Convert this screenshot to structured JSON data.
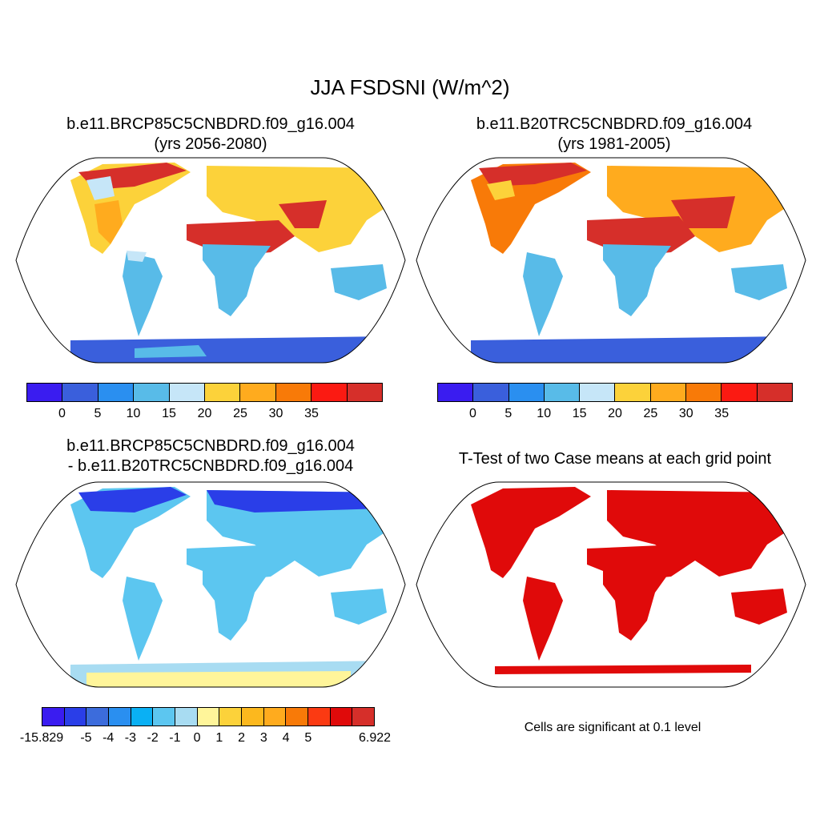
{
  "main_title": "JJA FSDSNI (W/m^2)",
  "panels": [
    {
      "title_line1": "b.e11.BRCP85C5CNBDRD.f09_g16.004",
      "title_line2": "(yrs 2056-2080)"
    },
    {
      "title_line1": "b.e11.B20TRC5CNBDRD.f09_g16.004",
      "title_line2": "(yrs 1981-2005)"
    },
    {
      "title_line1": "b.e11.BRCP85C5CNBDRD.f09_g16.004",
      "title_line2": "- b.e11.B20TRC5CNBDRD.f09_g16.004"
    },
    {
      "title_line1": "T-Test of two Case means at each grid point"
    }
  ],
  "colorbar_abs": {
    "colors": [
      "#3a1cf0",
      "#3a5fdc",
      "#2a8ff0",
      "#58bbe8",
      "#c6e6f8",
      "#fcd23a",
      "#ffab1e",
      "#f87a08",
      "#fb1a12",
      "#d62f2a"
    ],
    "labels": [
      "0",
      "5",
      "10",
      "15",
      "20",
      "25",
      "30",
      "35"
    ]
  },
  "colorbar_diff": {
    "colors": [
      "#3a1cf0",
      "#2a3ee8",
      "#3c6cdc",
      "#2a8ff0",
      "#0ab0f4",
      "#5cc6f0",
      "#a8dcf2",
      "#fff59a",
      "#fcd23a",
      "#fcb81e",
      "#ffab1e",
      "#f87a08",
      "#fb3a12",
      "#e00a0a",
      "#d62f2a"
    ],
    "labels": [
      "-15.829",
      "-5",
      "-4",
      "-3",
      "-2",
      "-1",
      "0",
      "1",
      "2",
      "3",
      "4",
      "5",
      "6.922"
    ]
  },
  "significance_note": "Cells are significant at 0.1 level",
  "significance_color": "#e00a0a"
}
